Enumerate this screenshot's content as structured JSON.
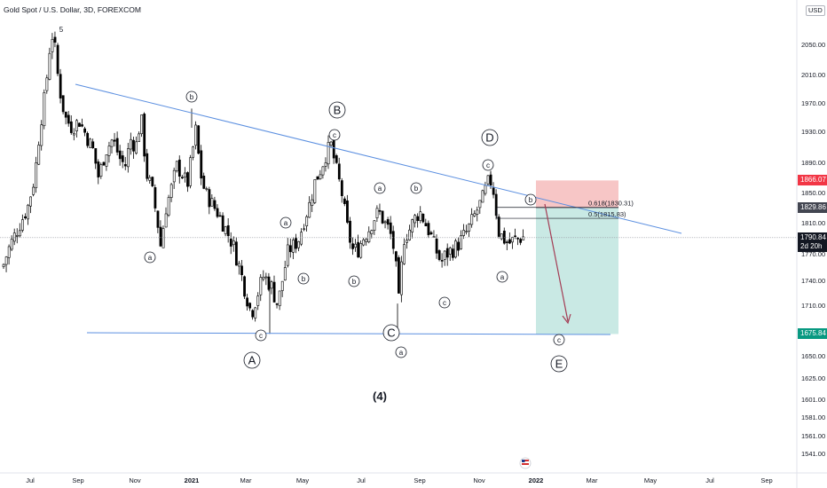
{
  "header": {
    "title": "Gold Spot / U.S. Dollar, 3D, FOREXCOM",
    "currency": "USD"
  },
  "chart_data": {
    "type": "candlestick",
    "title": "Gold Spot / U.S. Dollar, 3D, FOREXCOM",
    "ylim": [
      1520,
      2090
    ],
    "y_ticks": [
      {
        "value": 2050,
        "label": "2050.00"
      },
      {
        "value": 2010,
        "label": "2010.00"
      },
      {
        "value": 1970,
        "label": "1970.00"
      },
      {
        "value": 1930,
        "label": "1930.00"
      },
      {
        "value": 1890,
        "label": "1890.00"
      },
      {
        "value": 1850,
        "label": "1850.00"
      },
      {
        "value": 1810,
        "label": "1810.00"
      },
      {
        "value": 1770,
        "label": "1770.00"
      },
      {
        "value": 1740,
        "label": "1740.00"
      },
      {
        "value": 1710,
        "label": "1710.00"
      },
      {
        "value": 1650,
        "label": "1650.00"
      },
      {
        "value": 1625,
        "label": "1625.00"
      },
      {
        "value": 1601,
        "label": "1601.00"
      },
      {
        "value": 1581,
        "label": "1581.00"
      },
      {
        "value": 1561,
        "label": "1561.00"
      },
      {
        "value": 1541,
        "label": "1541.00"
      }
    ],
    "x_ticks": [
      "Jul",
      "Sep",
      "Nov",
      "2021",
      "Mar",
      "May",
      "Jul",
      "Sep",
      "Nov",
      "2022",
      "Mar",
      "May",
      "Jul",
      "Sep"
    ],
    "x_ticks_bold": [
      "2021",
      "2022"
    ],
    "price_labels": {
      "stop": {
        "value": "1866.07",
        "color": "#f23645"
      },
      "entry": {
        "value": "1829.86",
        "color": "#434651"
      },
      "last": {
        "value": "1790.84",
        "sub": "2d 20h",
        "color": "#131722"
      },
      "target": {
        "value": "1675.84",
        "color": "#089981"
      }
    },
    "fib_levels": [
      {
        "label": "0.618(1830.31)",
        "value": 1830.31
      },
      {
        "label": "0.5(1815.83)",
        "value": 1815.83
      }
    ],
    "waves": [
      {
        "label": "5",
        "size": "tiny"
      },
      {
        "label": "b",
        "size": "small"
      },
      {
        "label": "a",
        "size": "small"
      },
      {
        "label": "c",
        "size": "small"
      },
      {
        "label": "A",
        "size": "large"
      },
      {
        "label": "a",
        "size": "small"
      },
      {
        "label": "b",
        "size": "small"
      },
      {
        "label": "B",
        "size": "large"
      },
      {
        "label": "c",
        "size": "small"
      },
      {
        "label": "a",
        "size": "small"
      },
      {
        "label": "b",
        "size": "small"
      },
      {
        "label": "c",
        "size": "small"
      },
      {
        "label": "C",
        "size": "large"
      },
      {
        "label": "a",
        "size": "small"
      },
      {
        "label": "b",
        "size": "small"
      },
      {
        "label": "D",
        "size": "large"
      },
      {
        "label": "c",
        "size": "small"
      },
      {
        "label": "a",
        "size": "small"
      },
      {
        "label": "b",
        "size": "small"
      },
      {
        "label": "c",
        "size": "small"
      },
      {
        "label": "E",
        "size": "large"
      }
    ],
    "degree_label": "(4)",
    "colors": {
      "up": "#ffffff",
      "down": "#000000",
      "wick": "#000000",
      "trendline": "#5b8fe0",
      "stop_zone": "#f7c6c6",
      "target_zone": "#c9e9e4",
      "arrow": "#a33b53"
    }
  }
}
